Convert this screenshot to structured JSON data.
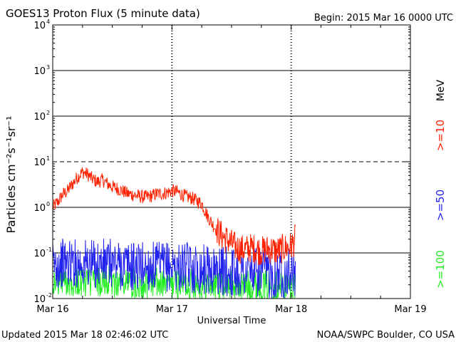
{
  "header": {
    "title": "GOES13 Proton Flux (5 minute data)",
    "begin": "Begin: 2015 Mar 16 0000 UTC"
  },
  "footer": {
    "updated": "Updated 2015 Mar 18 02:46:02 UTC",
    "credit": "NOAA/SWPC Boulder, CO USA"
  },
  "chart_data": {
    "type": "line",
    "title": "GOES13 Proton Flux (5 minute data)",
    "xlabel": "Universal Time",
    "ylabel": "Particles cm⁻²s⁻¹sr⁻¹",
    "y_scale": "log",
    "ylim": [
      0.01,
      10000
    ],
    "xlim": [
      0,
      72
    ],
    "x_unit": "hours since 2015 Mar 16 0000 UTC",
    "x_ticks": [
      {
        "x": 0,
        "label": "Mar 16"
      },
      {
        "x": 24,
        "label": "Mar 17"
      },
      {
        "x": 48,
        "label": "Mar 18"
      },
      {
        "x": 72,
        "label": "Mar 19"
      }
    ],
    "y_ticks": [
      {
        "base": "10",
        "exp": "-2"
      },
      {
        "base": "10",
        "exp": "-1"
      },
      {
        "base": "10",
        "exp": "0"
      },
      {
        "base": "10",
        "exp": "1"
      },
      {
        "base": "10",
        "exp": "2"
      },
      {
        "base": "10",
        "exp": "3"
      },
      {
        "base": "10",
        "exp": "4"
      }
    ],
    "threshold_dashed_at": 10,
    "unit_label": "MeV",
    "series": [
      {
        "name": ">=10",
        "color": "#ff2000",
        "x": [
          0,
          1,
          2,
          3,
          4,
          5,
          6,
          7,
          8,
          9,
          10,
          11,
          12,
          13,
          14,
          15,
          16,
          17,
          18,
          19,
          20,
          21,
          22,
          23,
          24,
          25,
          26,
          27,
          28,
          29,
          30,
          31,
          32,
          33,
          34,
          35,
          36,
          37,
          38,
          39,
          40,
          41,
          42,
          43,
          44,
          45,
          46,
          47,
          48,
          48.5,
          48.9
        ],
        "values": [
          1.0,
          1.3,
          1.9,
          2.3,
          3.3,
          4.6,
          6.0,
          5.3,
          4.2,
          3.6,
          4.0,
          3.3,
          2.8,
          2.6,
          2.3,
          2.0,
          1.9,
          1.8,
          1.7,
          1.7,
          1.8,
          2.0,
          2.0,
          2.1,
          2.3,
          2.2,
          1.9,
          1.7,
          1.6,
          1.4,
          1.2,
          0.7,
          0.45,
          0.32,
          0.24,
          0.2,
          0.16,
          0.13,
          0.12,
          0.12,
          0.13,
          0.12,
          0.11,
          0.12,
          0.12,
          0.11,
          0.12,
          0.13,
          0.14,
          0.17,
          0.22
        ]
      },
      {
        "name": ">=50",
        "color": "#2222ee",
        "x": [
          0,
          2,
          4,
          6,
          8,
          10,
          12,
          14,
          16,
          18,
          20,
          22,
          24,
          26,
          28,
          30,
          32,
          34,
          36,
          38,
          40,
          42,
          44,
          46,
          48,
          48.9
        ],
        "values": [
          0.055,
          0.06,
          0.06,
          0.06,
          0.055,
          0.058,
          0.06,
          0.055,
          0.05,
          0.052,
          0.05,
          0.05,
          0.05,
          0.048,
          0.047,
          0.045,
          0.042,
          0.04,
          0.038,
          0.038,
          0.037,
          0.037,
          0.036,
          0.036,
          0.038,
          0.038
        ]
      },
      {
        "name": ">=100",
        "color": "#22ee22",
        "x": [
          0,
          2,
          4,
          6,
          8,
          10,
          12,
          14,
          16,
          18,
          20,
          22,
          24,
          26,
          28,
          30,
          32,
          34,
          36,
          38,
          40,
          42,
          44,
          46,
          48,
          48.9
        ],
        "values": [
          0.023,
          0.024,
          0.024,
          0.023,
          0.023,
          0.024,
          0.023,
          0.022,
          0.022,
          0.022,
          0.022,
          0.021,
          0.022,
          0.021,
          0.021,
          0.021,
          0.02,
          0.02,
          0.02,
          0.019,
          0.019,
          0.019,
          0.019,
          0.019,
          0.019,
          0.019
        ]
      }
    ]
  }
}
